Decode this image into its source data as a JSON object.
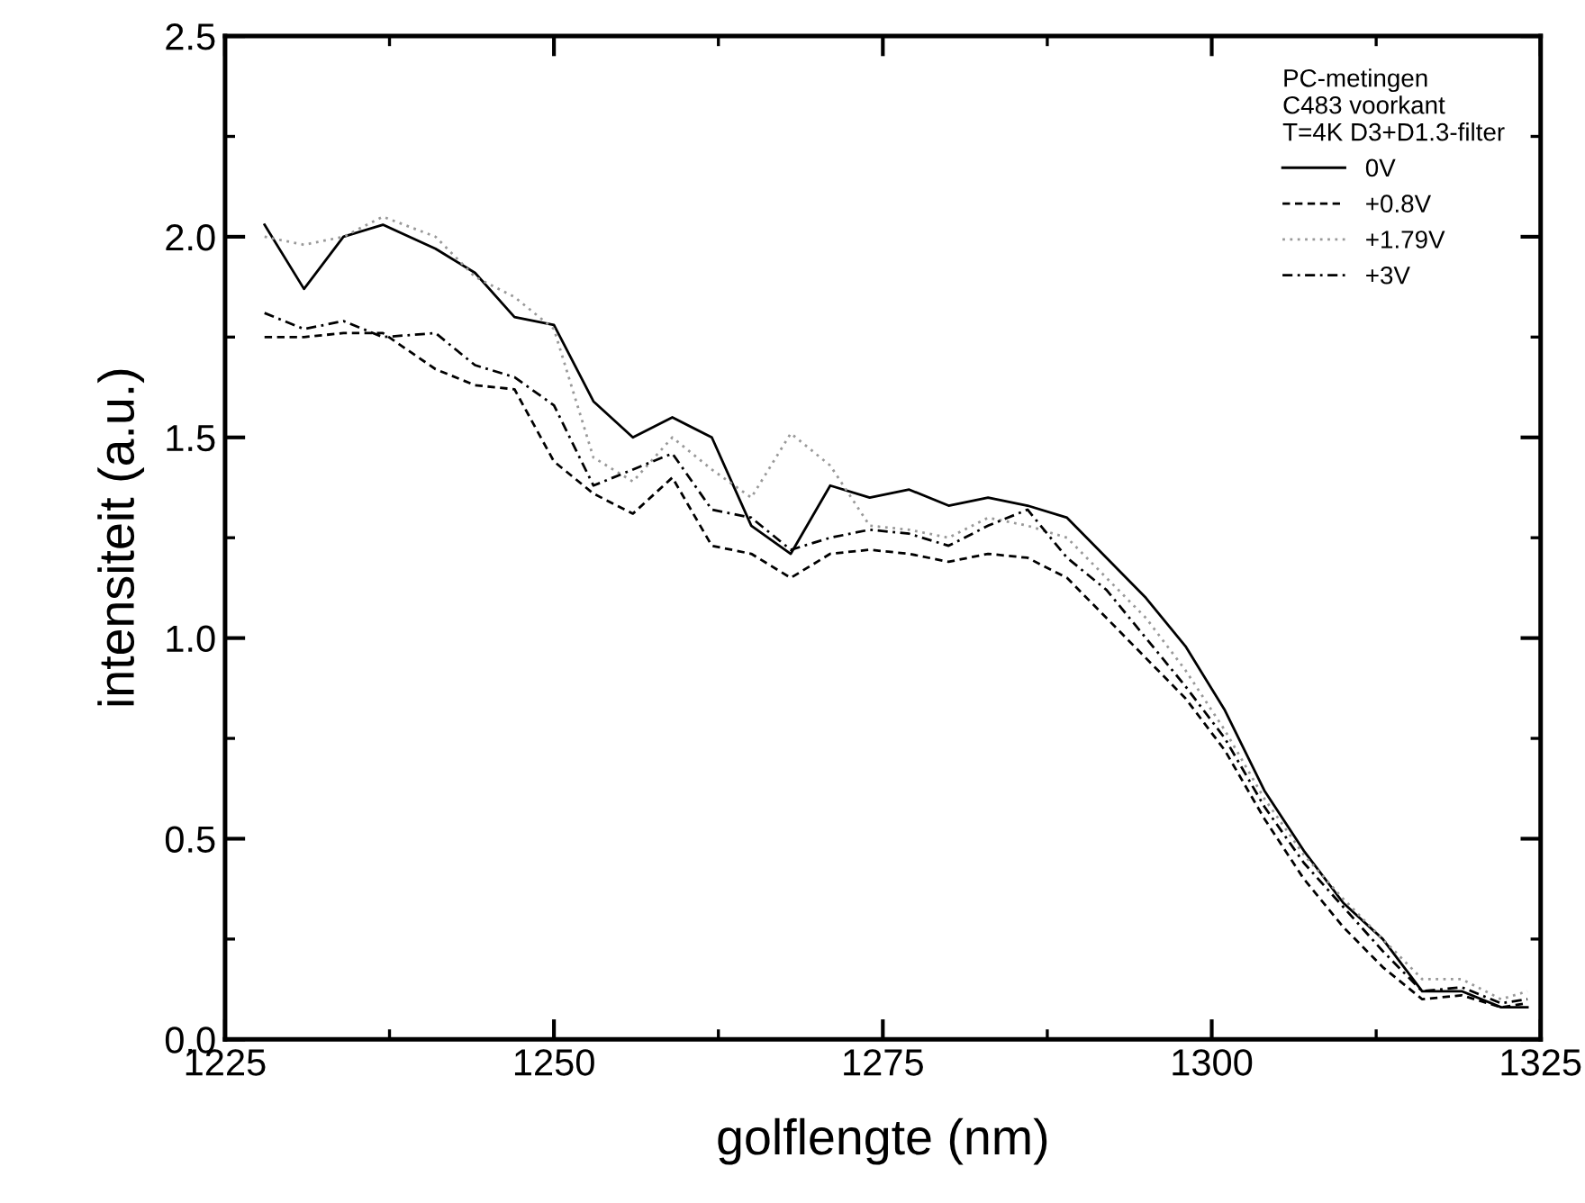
{
  "chart_data": {
    "type": "line",
    "xlabel": "golflengte (nm)",
    "ylabel": "intensiteit (a.u.)",
    "legend_title": "PC-metingen\nC483 voorkant\nT=4K D3+D1.3-filter",
    "x": [
      1228,
      1231,
      1234,
      1237,
      1241,
      1244,
      1247,
      1250,
      1253,
      1256,
      1259,
      1262,
      1265,
      1268,
      1271,
      1274,
      1277,
      1280,
      1283,
      1286,
      1289,
      1292,
      1295,
      1298,
      1301,
      1304,
      1307,
      1310,
      1313,
      1316,
      1319,
      1322,
      1324
    ],
    "series": [
      {
        "name": "0V",
        "color": "#000000",
        "line_style": "solid",
        "values": [
          2.03,
          1.87,
          2.0,
          2.03,
          1.97,
          1.91,
          1.8,
          1.78,
          1.59,
          1.5,
          1.55,
          1.5,
          1.28,
          1.21,
          1.38,
          1.35,
          1.37,
          1.33,
          1.35,
          1.33,
          1.3,
          1.2,
          1.1,
          0.98,
          0.82,
          0.62,
          0.47,
          0.34,
          0.25,
          0.12,
          0.12,
          0.08,
          0.08
        ]
      },
      {
        "name": "+0.8V",
        "color": "#000000",
        "line_style": "dashed",
        "values": [
          1.75,
          1.75,
          1.76,
          1.76,
          1.67,
          1.63,
          1.62,
          1.44,
          1.36,
          1.31,
          1.4,
          1.23,
          1.21,
          1.15,
          1.21,
          1.22,
          1.21,
          1.19,
          1.21,
          1.2,
          1.15,
          1.05,
          0.95,
          0.85,
          0.72,
          0.55,
          0.4,
          0.28,
          0.18,
          0.1,
          0.11,
          0.08,
          0.09
        ]
      },
      {
        "name": "+1.79V",
        "color": "#999999",
        "line_style": "dotted",
        "values": [
          2.0,
          1.98,
          2.0,
          2.05,
          2.0,
          1.9,
          1.85,
          1.77,
          1.45,
          1.39,
          1.5,
          1.42,
          1.35,
          1.51,
          1.43,
          1.28,
          1.27,
          1.25,
          1.3,
          1.28,
          1.25,
          1.15,
          1.05,
          0.92,
          0.77,
          0.6,
          0.46,
          0.35,
          0.25,
          0.15,
          0.15,
          0.1,
          0.12
        ]
      },
      {
        "name": "+3V",
        "color": "#000000",
        "line_style": "dashdot",
        "values": [
          1.81,
          1.77,
          1.79,
          1.75,
          1.76,
          1.68,
          1.65,
          1.58,
          1.38,
          1.42,
          1.46,
          1.32,
          1.3,
          1.22,
          1.25,
          1.27,
          1.26,
          1.23,
          1.28,
          1.32,
          1.2,
          1.12,
          1.0,
          0.88,
          0.75,
          0.58,
          0.44,
          0.33,
          0.22,
          0.12,
          0.13,
          0.09,
          0.1
        ]
      }
    ],
    "xlim": [
      1225,
      1325
    ],
    "xticks": [
      1225,
      1250,
      1275,
      1300,
      1325
    ],
    "ylim": [
      0,
      2.5
    ],
    "yticks": [
      {
        "value": 0,
        "label": "0.0"
      },
      {
        "value": 0.5,
        "label": "0.5"
      },
      {
        "value": 1,
        "label": "1.0"
      },
      {
        "value": 1.5,
        "label": "1.5"
      },
      {
        "value": 2,
        "label": "2.0"
      },
      {
        "value": 2.5,
        "label": "2.5"
      }
    ],
    "grid": false,
    "legend": "top right",
    "marker": "none"
  }
}
